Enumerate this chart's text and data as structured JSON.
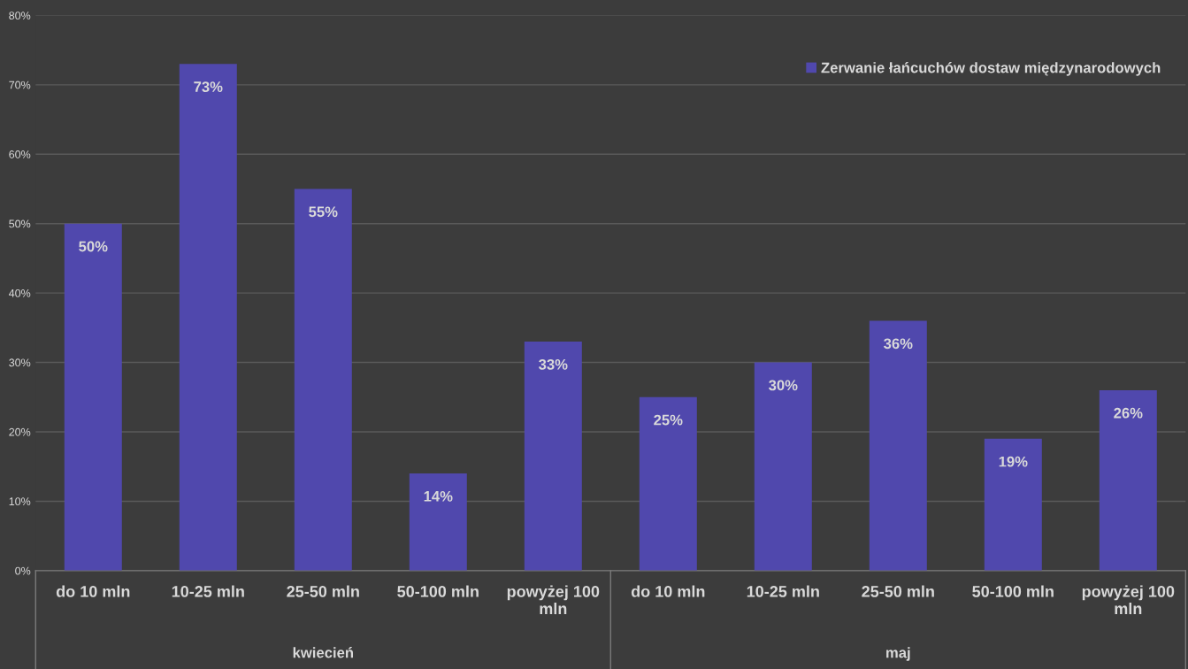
{
  "chart_data": {
    "type": "bar",
    "categories": [
      "do 10 mln",
      "10-25 mln",
      "25-50 mln",
      "50-100 mln",
      "powyżej 100 mln",
      "do 10 mln",
      "10-25 mln",
      "25-50 mln",
      "50-100 mln",
      "powyżej 100 mln"
    ],
    "series": [
      {
        "name": "Zerwanie łańcuchów dostaw międzynarodowych",
        "color": "#5048ad",
        "values": [
          50,
          73,
          55,
          14,
          33,
          25,
          30,
          36,
          19,
          26
        ],
        "value_labels": [
          "50%",
          "73%",
          "55%",
          "14%",
          "33%",
          "25%",
          "30%",
          "36%",
          "19%",
          "26%"
        ]
      }
    ],
    "ylim": [
      0,
      80
    ],
    "yticks": [
      {
        "value": 0,
        "label": "0%"
      },
      {
        "value": 10,
        "label": "10%"
      },
      {
        "value": 20,
        "label": "20%"
      },
      {
        "value": 30,
        "label": "30%"
      },
      {
        "value": 40,
        "label": "40%"
      },
      {
        "value": 50,
        "label": "50%"
      },
      {
        "value": 60,
        "label": "60%"
      },
      {
        "value": 70,
        "label": "70%"
      },
      {
        "value": 80,
        "label": "80%"
      }
    ],
    "annotations": [
      "kwiecień",
      "maj"
    ],
    "grid": "y",
    "legend": "top right"
  }
}
